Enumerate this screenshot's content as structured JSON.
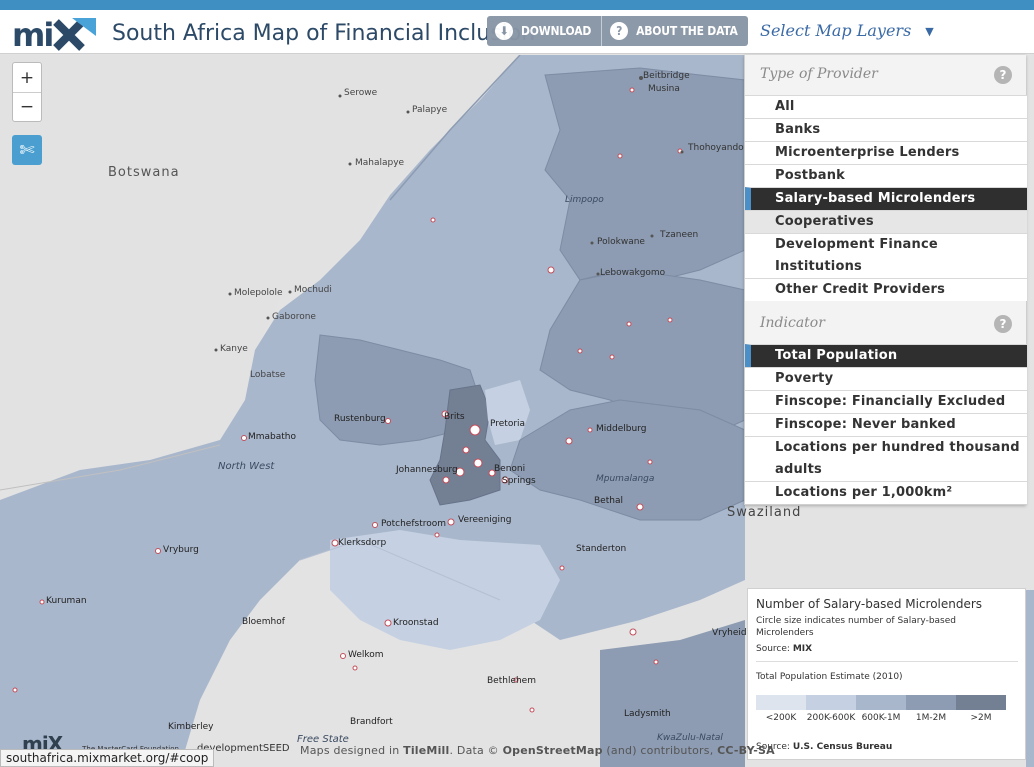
{
  "header": {
    "title": "South Africa Map of Financial Inclusion",
    "download_label": "DOWNLOAD",
    "about_label": "ABOUT THE DATA",
    "select_layers_label": "Select Map Layers",
    "brand_color": "#2c4a67",
    "accent_color": "#3f8fc2"
  },
  "map": {
    "zoom_in": "+",
    "zoom_out": "−",
    "places": [
      "Botswana",
      "Serowe",
      "Palapye",
      "Mahalapye",
      "Beitbridge",
      "Musina",
      "Thohoyandou",
      "Limpopo",
      "Polokwane",
      "Tzaneen",
      "Lebowakgomo",
      "Molepolole",
      "Mochudi",
      "Gaborone",
      "Kanye",
      "Lobatse",
      "Rustenburg",
      "Brits",
      "Pretoria",
      "Mmabatho",
      "North West",
      "Johannesburg",
      "Benoni",
      "Springs",
      "Middelburg",
      "Mpumalanga",
      "Potchefstroom",
      "Klerksdorp",
      "Vereeniging",
      "Bethal",
      "Swaziland",
      "Vryburg",
      "Standerton",
      "Kuruman",
      "Bloemhof",
      "Kroonstad",
      "Welkom",
      "Bethlehem",
      "Free State",
      "Brandfort",
      "Ladysmith",
      "KwaZulu-Natal",
      "Vryheid",
      "Kimberley"
    ],
    "choropleth_colors": [
      "#dde4ee",
      "#c5d1e2",
      "#a9b7cc",
      "#8d9cb2",
      "#737f93"
    ]
  },
  "panel": {
    "provider_title": "Type of Provider",
    "providers": [
      "All",
      "Banks",
      "Microenterprise Lenders",
      "Postbank",
      "Salary-based Microlenders",
      "Cooperatives",
      "Development Finance Institutions",
      "Other Credit Providers"
    ],
    "selected_provider": "Salary-based Microlenders",
    "hovered_provider": "Cooperatives",
    "indicator_title": "Indicator",
    "indicators": [
      "Total Population",
      "Poverty",
      "Finscope: Financially Excluded",
      "Finscope: Never banked",
      "Locations per hundred thousand adults",
      "Locations per 1,000km²"
    ],
    "selected_indicator": "Total Population",
    "help_glyph": "?"
  },
  "legend": {
    "title": "Number of Salary-based Microlenders",
    "subtitle": "Circle size indicates number of Salary-based Microlenders",
    "source_label": "Source:",
    "source_value": "MIX",
    "pop_title": "Total Population Estimate (2010)",
    "bins": [
      "<200K",
      "200K-600K",
      "600K-1M",
      "1M-2M",
      ">2M"
    ],
    "bin_colors": [
      "#dde4ee",
      "#c5d1e2",
      "#a9b7cc",
      "#8d9cb2",
      "#737f93"
    ],
    "source2_label": "Source:",
    "source2_value": "U.S. Census Bureau"
  },
  "attribution": {
    "prefix": "Maps designed in",
    "tilemill": "TileMill",
    "data": ". Data ©",
    "osm": "OpenStreetMap",
    "contrib": "(and) contributors,",
    "license": "CC-BY-SA"
  },
  "footer": {
    "mix_logo": "miX",
    "mastercard_foundation": "The MasterCard Foundation",
    "devseed": "developmentSEED",
    "url": "southafrica.mixmarket.org/#coop"
  }
}
